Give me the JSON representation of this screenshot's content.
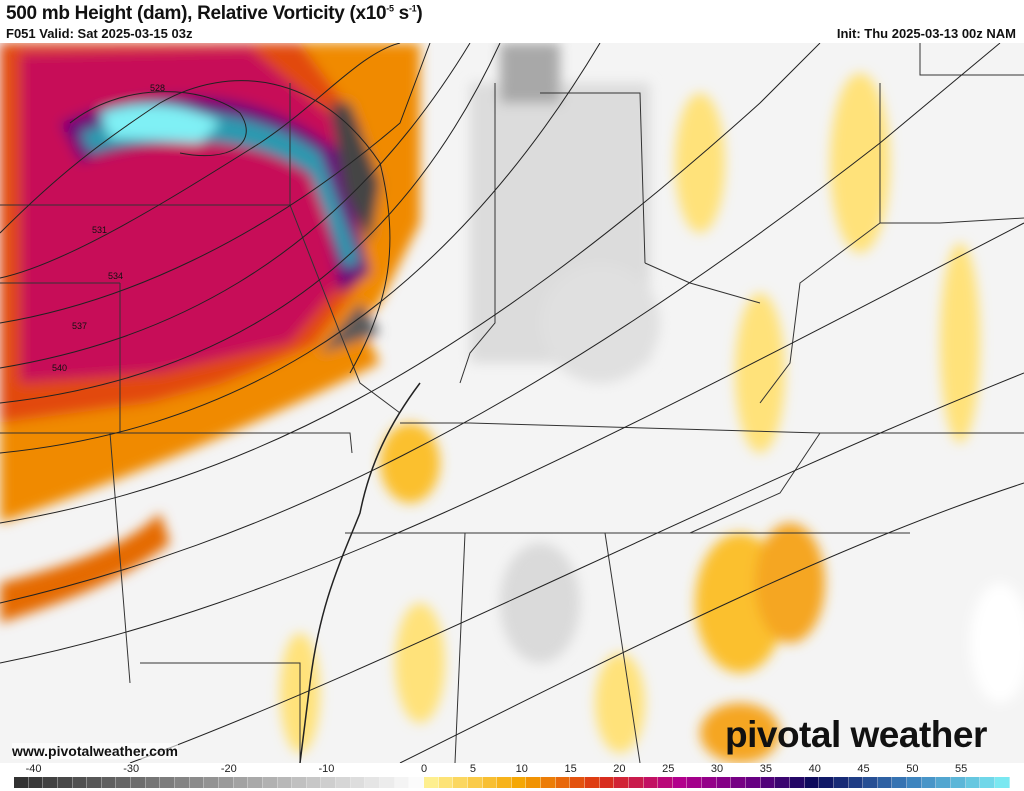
{
  "header": {
    "title": "500 mb Height (dam), Relative Vorticity (x10",
    "title_exp1": "-5",
    "title_mid": " s",
    "title_exp2": "-1",
    "title_end": ")",
    "valid": "F051 Valid: Sat 2025-03-15 03z",
    "init": "Init: Thu 2025-03-13 00z NAM"
  },
  "map": {
    "height_contour_labels": [
      "528",
      "531",
      "534",
      "537",
      "540"
    ],
    "watermark_url": "www.pivotalweather.com",
    "logo_text": "pivotalweather"
  },
  "colorbar": {
    "ticks": [
      "-40",
      "-30",
      "-20",
      "-10",
      "0",
      "5",
      "10",
      "15",
      "20",
      "25",
      "30",
      "35",
      "40",
      "45",
      "50",
      "55"
    ],
    "range": [
      -42,
      60
    ],
    "colors": {
      "negative": "#2e2e2e",
      "zero": "#ffffff",
      "low": "#fff59a",
      "mid": "#f08a00",
      "high": "#c0006a",
      "purple": "#7a007a",
      "navy": "#0a0a5a",
      "cyan": "#7ff0f5"
    }
  }
}
